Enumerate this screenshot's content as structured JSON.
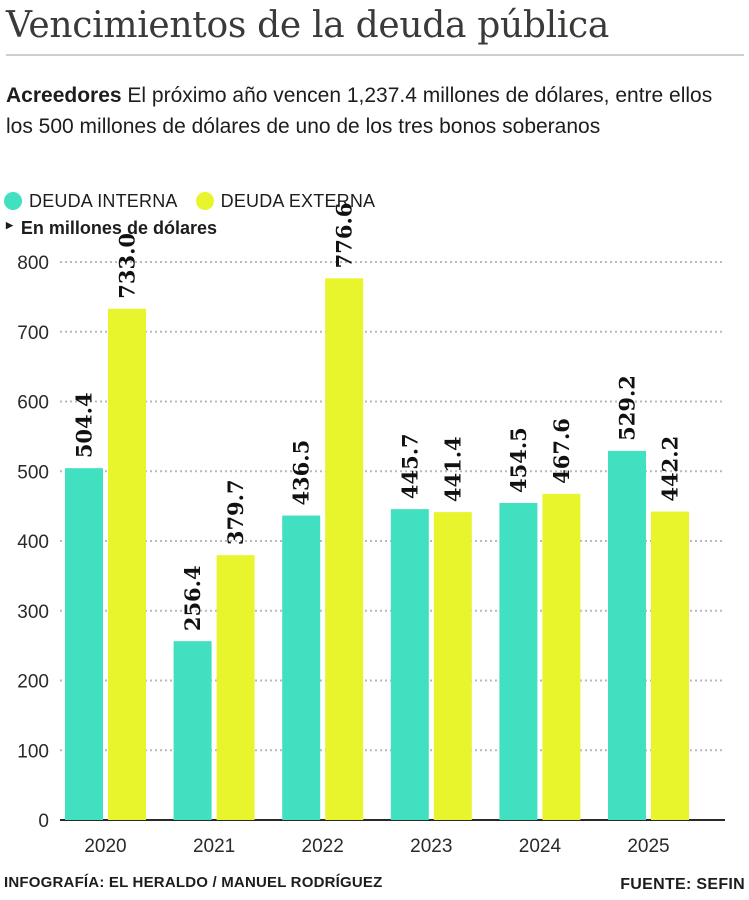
{
  "title": "Vencimientos de la deuda pública",
  "intro": {
    "lead": "Acreedores",
    "text": " El próximo año vencen 1,237.4 millones de dólares, entre ellos los 500 millones de dólares de uno de los tres bonos soberanos"
  },
  "units_label": "En millones de dólares",
  "credit": "INFOGRAFÍA: EL HERALDO / MANUEL RODRÍGUEZ",
  "source": "FUENTE: SEFIN",
  "colors": {
    "interna": "#40e0c0",
    "externa": "#e8f52c",
    "grid": "#b9b9b9",
    "text": "#1d1d1b"
  },
  "chart_data": {
    "type": "bar",
    "categories": [
      "2020",
      "2021",
      "2022",
      "2023",
      "2024",
      "2025"
    ],
    "series": [
      {
        "name": "DEUDA INTERNA",
        "values": [
          504.4,
          256.4,
          436.5,
          445.7,
          454.5,
          529.2
        ],
        "labels": [
          "504.4",
          "256.4",
          "436.5",
          "445.7",
          "454.5",
          "529.2"
        ]
      },
      {
        "name": "DEUDA EXTERNA",
        "values": [
          733.0,
          379.7,
          776.6,
          441.4,
          467.6,
          442.2
        ],
        "labels": [
          "733.0",
          "379.7",
          "776.6",
          "441.4",
          "467.6",
          "442.2"
        ]
      }
    ],
    "yticks": [
      0,
      100,
      200,
      300,
      400,
      500,
      600,
      700,
      800
    ],
    "ylim": [
      0,
      800
    ],
    "ylabel": "En millones de dólares",
    "legend": "top-left",
    "grid": true
  }
}
